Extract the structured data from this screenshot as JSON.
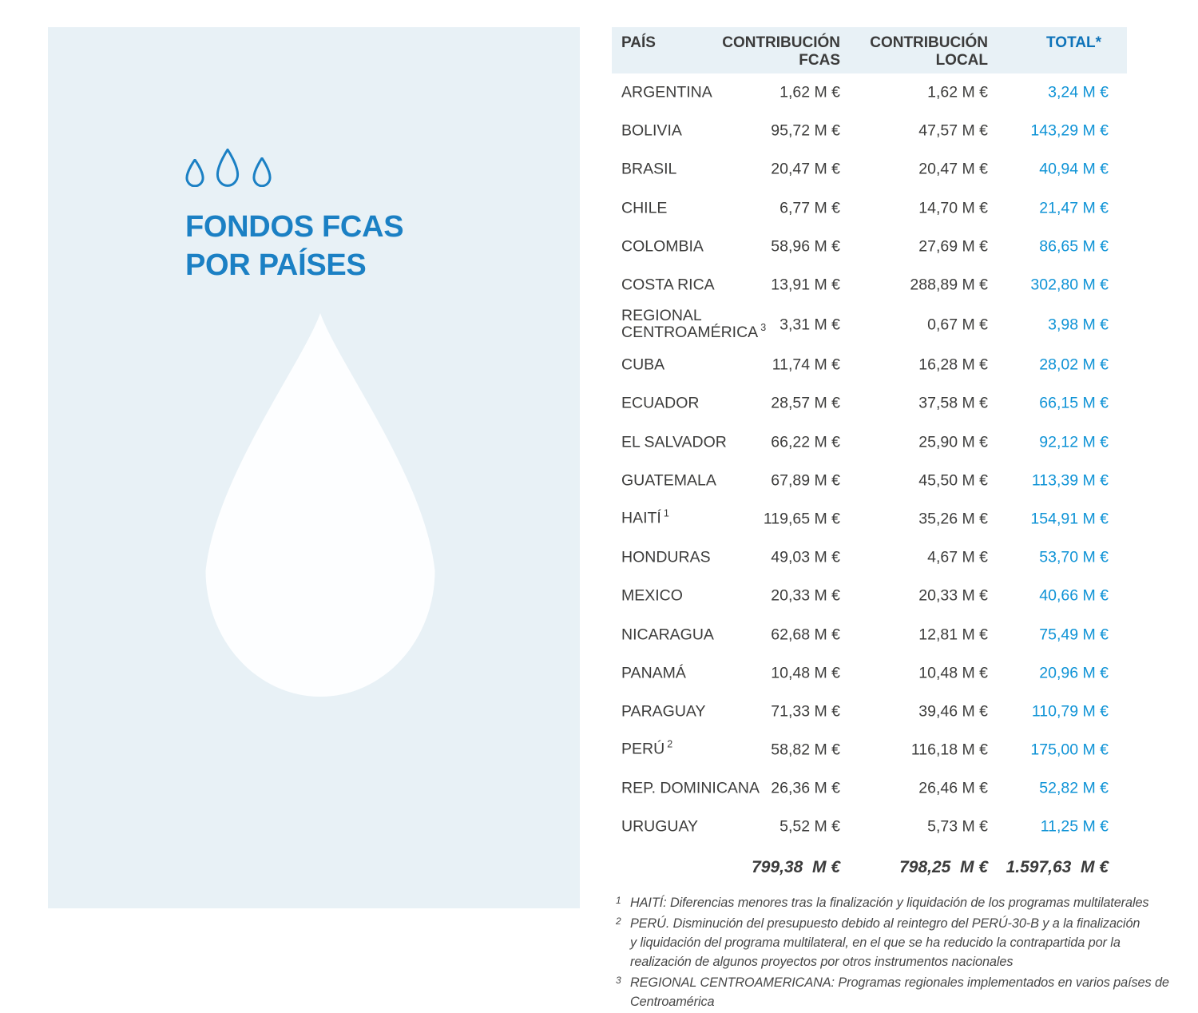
{
  "panel": {
    "title_line1": "FONDOS FCAS",
    "title_line2": "POR PAÍSES"
  },
  "colors": {
    "accent_blue": "#1b80c4",
    "total_header_blue": "#0e73b9",
    "total_value_blue": "#0f93d6",
    "panel_background": "#e8f1f6",
    "text_dark": "#3d3d3c"
  },
  "table": {
    "headers": {
      "country": "PAÍS",
      "fcas": "CONTRIBUCIÓN\nFCAS",
      "local": "CONTRIBUCIÓN\nLOCAL",
      "total": "TOTAL*"
    },
    "rows": [
      {
        "country": "ARGENTINA",
        "fcas": "1,62 M €",
        "local": "1,62 M €",
        "total": "3,24 M €"
      },
      {
        "country": "BOLIVIA",
        "fcas": "95,72 M €",
        "local": "47,57 M €",
        "total": "143,29 M €"
      },
      {
        "country": "BRASIL",
        "fcas": "20,47 M €",
        "local": "20,47 M €",
        "total": "40,94 M €"
      },
      {
        "country": "CHILE",
        "fcas": "6,77 M €",
        "local": "14,70 M €",
        "total": "21,47 M €"
      },
      {
        "country": "COLOMBIA",
        "fcas": "58,96 M €",
        "local": "27,69 M €",
        "total": "86,65 M €"
      },
      {
        "country": "COSTA RICA",
        "fcas": "13,91 M €",
        "local": "288,89 M €",
        "total": "302,80 M €"
      },
      {
        "country": "REGIONAL\nCENTROAMÉRICA",
        "sup": "3",
        "tall": true,
        "fcas": "3,31 M €",
        "local": "0,67 M €",
        "total": "3,98 M €"
      },
      {
        "country": "CUBA",
        "fcas": "11,74 M €",
        "local": "16,28 M €",
        "total": "28,02 M €"
      },
      {
        "country": "ECUADOR",
        "fcas": "28,57 M €",
        "local": "37,58 M €",
        "total": "66,15 M €"
      },
      {
        "country": "EL SALVADOR",
        "fcas": "66,22 M €",
        "local": "25,90 M €",
        "total": "92,12 M €"
      },
      {
        "country": "GUATEMALA",
        "fcas": "67,89 M €",
        "local": "45,50 M €",
        "total": "113,39 M €"
      },
      {
        "country": "HAITÍ",
        "sup": "1",
        "fcas": "119,65 M €",
        "local": "35,26 M €",
        "total": "154,91 M €"
      },
      {
        "country": "HONDURAS",
        "fcas": "49,03 M €",
        "local": "4,67 M €",
        "total": "53,70 M €"
      },
      {
        "country": "MEXICO",
        "fcas": "20,33 M €",
        "local": "20,33 M €",
        "total": "40,66 M €"
      },
      {
        "country": "NICARAGUA",
        "fcas": "62,68 M €",
        "local": "12,81 M €",
        "total": "75,49 M €"
      },
      {
        "country": "PANAMÁ",
        "fcas": "10,48 M €",
        "local": "10,48 M €",
        "total": "20,96 M €"
      },
      {
        "country": "PARAGUAY",
        "fcas": "71,33 M €",
        "local": "39,46 M €",
        "total": "110,79 M €"
      },
      {
        "country": "PERÚ",
        "sup": "2",
        "fcas": "58,82 M €",
        "local": "116,18 M €",
        "total": "175,00 M €"
      },
      {
        "country": "REP. DOMINICANA",
        "fcas": "26,36 M €",
        "local": "26,46 M €",
        "total": "52,82 M €"
      },
      {
        "country": "URUGUAY",
        "fcas": "5,52 M €",
        "local": "5,73 M €",
        "total": "11,25 M €"
      }
    ],
    "totals": {
      "fcas": "799,38  M €",
      "local": "798,25  M €",
      "total": "1.597,63  M €"
    }
  },
  "footnotes": [
    {
      "sup": "1",
      "text": "HAITÍ: Diferencias menores tras la finalización y liquidación de los programas multilaterales"
    },
    {
      "sup": "2",
      "text": "PERÚ. Disminución del presupuesto debido al reintegro del PERÚ-30-B y a la finalización\ny liquidación del programa multilateral, en el que se ha reducido la contrapartida por la\nrealización de algunos proyectos por otros instrumentos nacionales"
    },
    {
      "sup": "3",
      "text": "REGIONAL CENTROAMERICANA: Programas regionales implementados en varios países de\nCentroamérica"
    }
  ],
  "chart_data": {
    "type": "table",
    "title": "FONDOS FCAS POR PAÍSES",
    "columns": [
      "PAÍS",
      "CONTRIBUCIÓN FCAS (M €)",
      "CONTRIBUCIÓN LOCAL (M €)",
      "TOTAL (M €)"
    ],
    "rows": [
      [
        "ARGENTINA",
        1.62,
        1.62,
        3.24
      ],
      [
        "BOLIVIA",
        95.72,
        47.57,
        143.29
      ],
      [
        "BRASIL",
        20.47,
        20.47,
        40.94
      ],
      [
        "CHILE",
        6.77,
        14.7,
        21.47
      ],
      [
        "COLOMBIA",
        58.96,
        27.69,
        86.65
      ],
      [
        "COSTA RICA",
        13.91,
        288.89,
        302.8
      ],
      [
        "REGIONAL CENTROAMÉRICA",
        3.31,
        0.67,
        3.98
      ],
      [
        "CUBA",
        11.74,
        16.28,
        28.02
      ],
      [
        "ECUADOR",
        28.57,
        37.58,
        66.15
      ],
      [
        "EL SALVADOR",
        66.22,
        25.9,
        92.12
      ],
      [
        "GUATEMALA",
        67.89,
        45.5,
        113.39
      ],
      [
        "HAITÍ",
        119.65,
        35.26,
        154.91
      ],
      [
        "HONDURAS",
        49.03,
        4.67,
        53.7
      ],
      [
        "MEXICO",
        20.33,
        20.33,
        40.66
      ],
      [
        "NICARAGUA",
        62.68,
        12.81,
        75.49
      ],
      [
        "PANAMÁ",
        10.48,
        10.48,
        20.96
      ],
      [
        "PARAGUAY",
        71.33,
        39.46,
        110.79
      ],
      [
        "PERÚ",
        58.82,
        116.18,
        175.0
      ],
      [
        "REP. DOMINICANA",
        26.36,
        26.46,
        52.82
      ],
      [
        "URUGUAY",
        5.52,
        5.73,
        11.25
      ]
    ],
    "totals": [
      "TOTAL",
      799.38,
      798.25,
      1597.63
    ],
    "unit": "M €"
  }
}
